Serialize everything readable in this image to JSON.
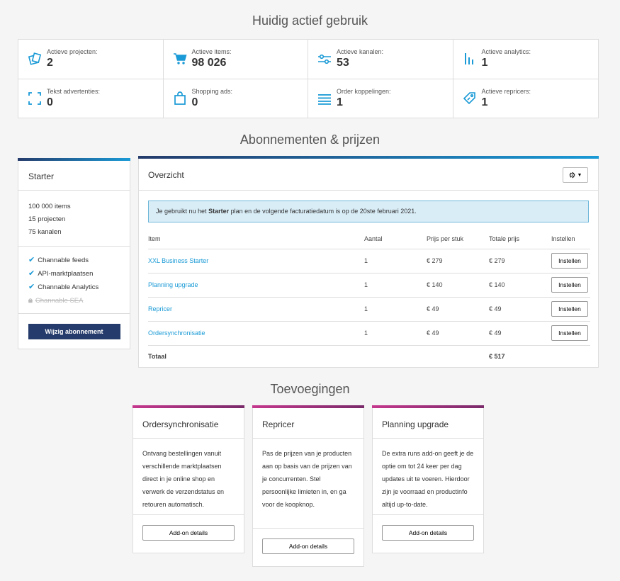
{
  "sections": {
    "usage_title": "Huidig actief gebruik",
    "plans_title": "Abonnementen & prijzen",
    "addons_title": "Toevoegingen"
  },
  "usage": [
    {
      "label": "Actieve projecten:",
      "value": "2",
      "icon": "projects-icon"
    },
    {
      "label": "Actieve items:",
      "value": "98 026",
      "icon": "cart-icon"
    },
    {
      "label": "Actieve kanalen:",
      "value": "53",
      "icon": "sliders-icon"
    },
    {
      "label": "Actieve analytics:",
      "value": "1",
      "icon": "bar-chart-icon"
    },
    {
      "label": "Tekst advertenties:",
      "value": "0",
      "icon": "expand-icon"
    },
    {
      "label": "Shopping ads:",
      "value": "0",
      "icon": "shopping-bag-icon"
    },
    {
      "label": "Order koppelingen:",
      "value": "1",
      "icon": "list-icon"
    },
    {
      "label": "Actieve repricers:",
      "value": "1",
      "icon": "price-tag-icon"
    }
  ],
  "plan": {
    "name": "Starter",
    "limits": [
      "100 000 items",
      "15 projecten",
      "75 kanalen"
    ],
    "features": [
      {
        "label": "Channable feeds",
        "enabled": true
      },
      {
        "label": "API-marktplaatsen",
        "enabled": true
      },
      {
        "label": "Channable Analytics",
        "enabled": true
      },
      {
        "label": "Channable SEA",
        "enabled": false
      }
    ],
    "button": "Wijzig abonnement"
  },
  "overview": {
    "title": "Overzicht",
    "alert_prefix": "Je gebruikt nu het ",
    "alert_plan": "Starter",
    "alert_suffix": " plan en de volgende facturatiedatum is op de 20ste februari 2021.",
    "columns": [
      "Item",
      "Aantal",
      "Prijs per stuk",
      "Totale prijs",
      "Instellen"
    ],
    "rows": [
      {
        "item": "XXL Business Starter",
        "qty": "1",
        "unit": "€ 279",
        "total": "€ 279",
        "button": "Instellen"
      },
      {
        "item": "Planning upgrade",
        "qty": "1",
        "unit": "€ 140",
        "total": "€ 140",
        "button": "Instellen"
      },
      {
        "item": "Repricer",
        "qty": "1",
        "unit": "€ 49",
        "total": "€ 49",
        "button": "Instellen"
      },
      {
        "item": "Ordersynchronisatie",
        "qty": "1",
        "unit": "€ 49",
        "total": "€ 49",
        "button": "Instellen"
      }
    ],
    "total_label": "Totaal",
    "total_value": "€ 517"
  },
  "addons": [
    {
      "title": "Ordersynchronisatie",
      "text": "Ontvang bestellingen vanuit verschillende marktplaatsen direct in je online shop en verwerk de verzendstatus en retouren automatisch.",
      "button": "Add-on details"
    },
    {
      "title": "Repricer",
      "text": "Pas de prijzen van je producten aan op basis van de prijzen van je concurrenten. Stel persoonlijke limieten in, en ga voor de koopknop.",
      "button": "Add-on details"
    },
    {
      "title": "Planning upgrade",
      "text": "De extra runs add-on geeft je de optie om tot 24 keer per dag updates uit te voeren. Hierdoor zijn je voorraad en productinfo altijd up-to-date.",
      "button": "Add-on details"
    }
  ],
  "colors": {
    "accent": "#1a9ad6",
    "navy": "#243b6b",
    "addon_accent": "#c4378c"
  }
}
